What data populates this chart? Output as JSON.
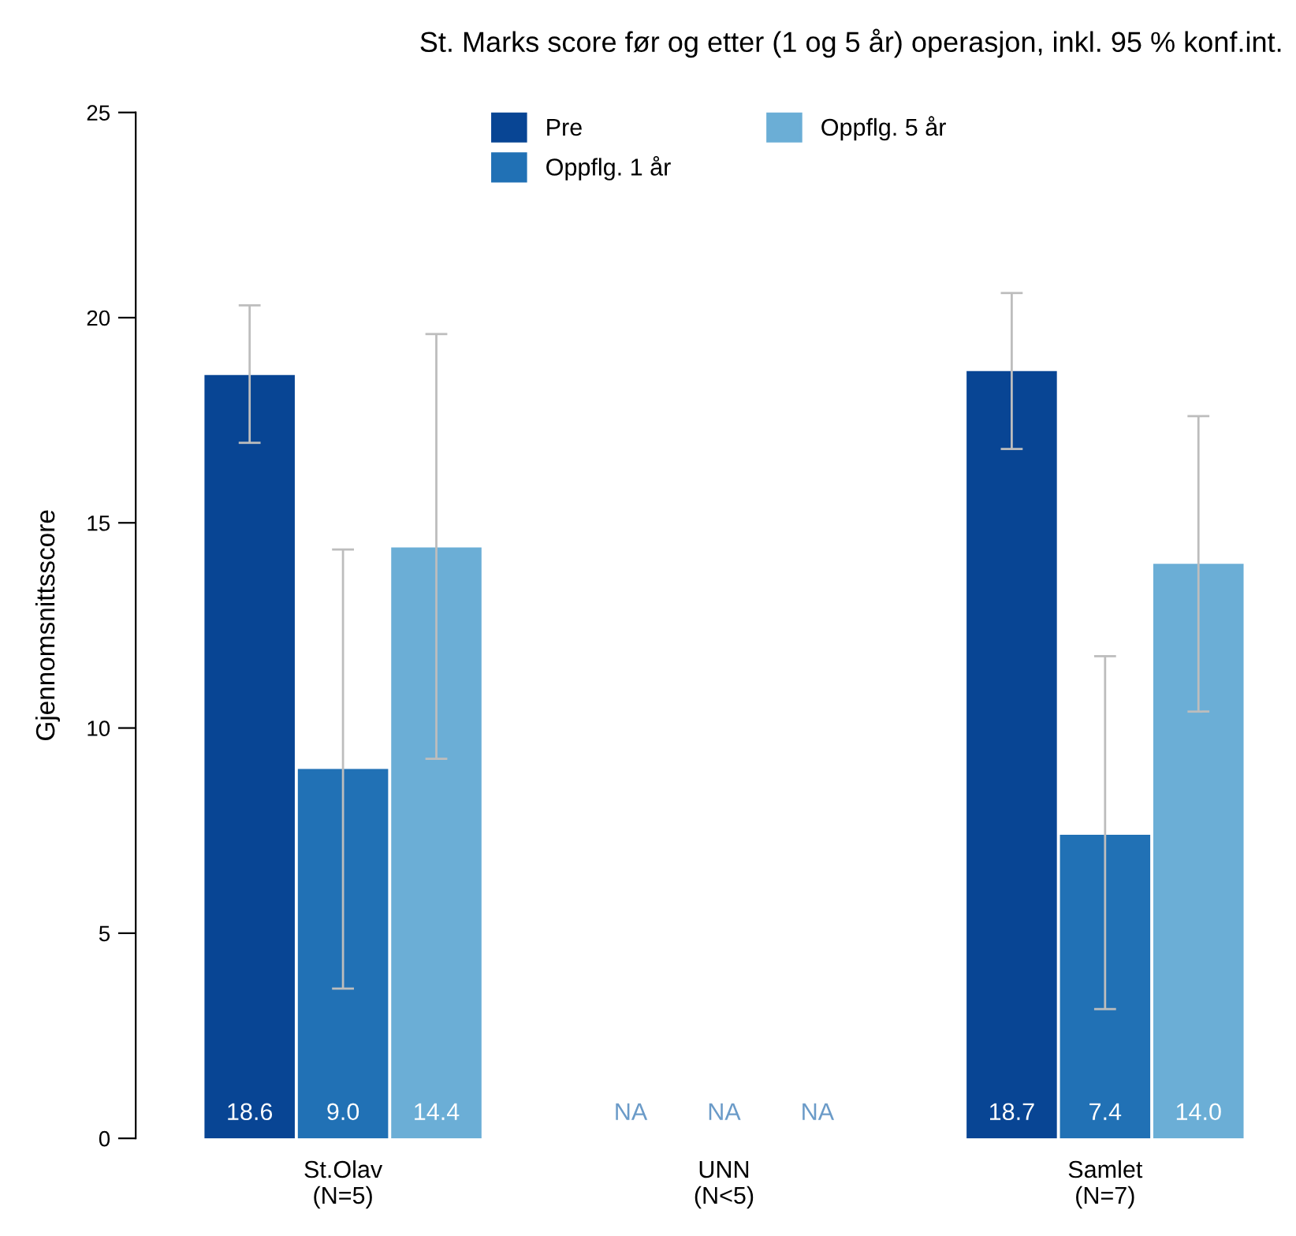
{
  "chart_data": {
    "type": "bar",
    "title": "St. Marks score før og etter (1 og 5 år) operasjon, inkl. 95 % konf.int.",
    "ylabel": "Gjennomsnittsscore",
    "categories": [
      "St.Olav\n(N=5)",
      "UNN\n(N<5)",
      "Samlet\n(N=7)"
    ],
    "series": [
      {
        "name": "Pre",
        "color": "#084594",
        "values": [
          18.6,
          null,
          18.7
        ],
        "errors": [
          [
            16.95,
            20.3
          ],
          null,
          [
            16.8,
            20.6
          ]
        ],
        "value_labels": [
          "18.6",
          "NA",
          "18.7"
        ]
      },
      {
        "name": "Oppflg. 1 år",
        "color": "#2171b5",
        "values": [
          9.0,
          null,
          7.4
        ],
        "errors": [
          [
            3.65,
            14.35
          ],
          null,
          [
            3.15,
            11.75
          ]
        ],
        "value_labels": [
          "9.0",
          "NA",
          "7.4"
        ]
      },
      {
        "name": "Oppflg. 5 år",
        "color": "#6baed6",
        "values": [
          14.4,
          null,
          14.0
        ],
        "errors": [
          [
            9.25,
            19.6
          ],
          null,
          [
            10.4,
            17.6
          ]
        ],
        "value_labels": [
          "14.4",
          "NA",
          "14.0"
        ]
      }
    ],
    "ylim": [
      0,
      25
    ],
    "yticks": [
      0,
      5,
      10,
      15,
      20,
      25
    ],
    "legend": "top",
    "grid": false
  }
}
